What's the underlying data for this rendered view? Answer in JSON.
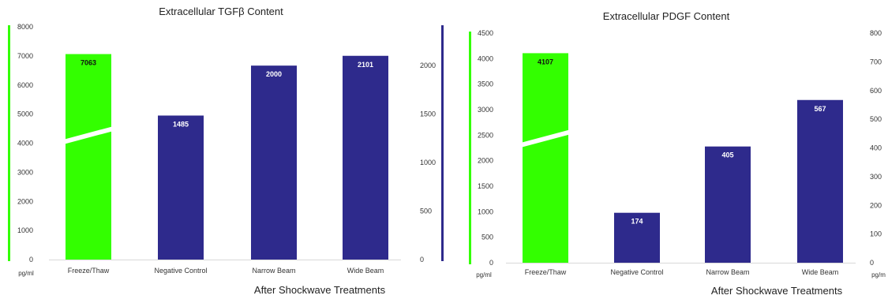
{
  "chart_data": [
    {
      "type": "bar",
      "title": "Extracellular TGFβ Content",
      "xlabel": "After Shockwave Treatments",
      "left_axis": {
        "unit": "pg/ml",
        "ylim": [
          0,
          8000
        ],
        "ticks": [
          "0",
          "1000",
          "2000",
          "3000",
          "4000",
          "5000",
          "6000",
          "7000",
          "8000"
        ],
        "color": "#33ff00"
      },
      "right_axis": {
        "ylim": [
          0,
          2400
        ],
        "ticks": [
          "0",
          "500",
          "1000",
          "1500",
          "2000"
        ],
        "color": "#2e2a8c"
      },
      "categories": [
        "Freeze/Thaw",
        "Negative Control",
        "Narrow Beam",
        "Wide Beam"
      ],
      "values": [
        7063,
        1485,
        2000,
        2101
      ],
      "value_labels": [
        "7063",
        "1485",
        "2000",
        "2101"
      ],
      "axis": [
        "left",
        "right",
        "right",
        "right"
      ],
      "colors": [
        "#33ff00",
        "#2e2a8c",
        "#2e2a8c",
        "#2e2a8c"
      ],
      "break_at": 4300
    },
    {
      "type": "bar",
      "title": "Extracellular PDGF Content",
      "xlabel": "After Shockwave Treatments",
      "left_axis": {
        "unit": "pg/ml",
        "ylim": [
          0,
          4500
        ],
        "ticks": [
          "0",
          "500",
          "1000",
          "1500",
          "2000",
          "2500",
          "3000",
          "3500",
          "4000",
          "4500"
        ],
        "color": "#33ff00"
      },
      "right_axis": {
        "unit": "pg/m",
        "ylim": [
          0,
          800
        ],
        "ticks": [
          "0",
          "100",
          "200",
          "300",
          "400",
          "500",
          "600",
          "700",
          "800"
        ],
        "color": "#2e2a8c"
      },
      "categories": [
        "Freeze/Thaw",
        "Negative Control",
        "Narrow Beam",
        "Wide Beam"
      ],
      "values": [
        4107,
        174,
        405,
        567
      ],
      "value_labels": [
        "4107",
        "174",
        "405",
        "567"
      ],
      "axis": [
        "left",
        "right",
        "right",
        "right"
      ],
      "colors": [
        "#33ff00",
        "#2e2a8c",
        "#2e2a8c",
        "#2e2a8c"
      ],
      "break_at": 2450
    }
  ]
}
